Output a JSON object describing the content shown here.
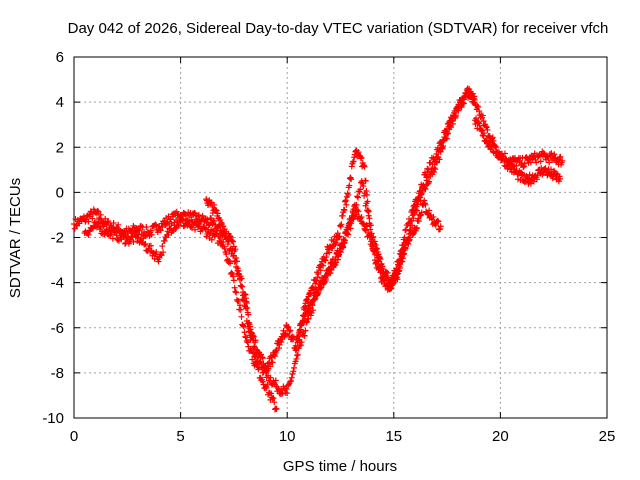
{
  "chart_data": {
    "type": "scatter",
    "title": "Day 042 of 2026, Sidereal Day-to-day VTEC variation (SDTVAR) for receiver vfch",
    "xlabel": "GPS time / hours",
    "ylabel": "SDTVAR / TECUs",
    "xlim": [
      0,
      25
    ],
    "ylim": [
      -10,
      6
    ],
    "xticks": [
      0,
      5,
      10,
      15,
      20,
      25
    ],
    "yticks": [
      -10,
      -8,
      -6,
      -4,
      -2,
      0,
      2,
      4,
      6
    ],
    "grid": true,
    "marker": "+",
    "series": [
      {
        "name": "main",
        "color": "#ff0000",
        "x": [
          0.0,
          0.5,
          1.0,
          1.5,
          2.0,
          2.5,
          3.0,
          3.5,
          4.0,
          4.5,
          5.0,
          5.5,
          6.0,
          6.5,
          7.0,
          7.5,
          8.0,
          8.5,
          9.0,
          9.5,
          10.0,
          10.5,
          11.0,
          11.5,
          12.0,
          12.5,
          13.0,
          13.5,
          14.0,
          14.5,
          15.0,
          15.5,
          16.0,
          16.5,
          17.0,
          17.5,
          18.0,
          18.5,
          19.0,
          19.5,
          20.0,
          20.5,
          21.0,
          21.5,
          22.0,
          22.5,
          22.9
        ],
        "y": [
          -1.4,
          -1.2,
          -0.9,
          -1.4,
          -1.6,
          -1.8,
          -1.6,
          -1.8,
          -1.5,
          -1.2,
          -1.0,
          -1.1,
          -1.2,
          -1.4,
          -1.8,
          -2.8,
          -5.0,
          -7.3,
          -8.0,
          -8.6,
          -8.9,
          -7.2,
          -5.6,
          -4.3,
          -3.4,
          -2.5,
          -1.2,
          0.5,
          -2.0,
          -3.6,
          -4.0,
          -2.0,
          -0.4,
          0.8,
          1.7,
          2.8,
          3.7,
          4.5,
          3.6,
          2.5,
          1.7,
          1.4,
          1.3,
          1.5,
          1.6,
          1.5,
          1.4
        ]
      },
      {
        "name": "b",
        "color": "#ff0000",
        "x": [
          0.5,
          1.0,
          1.5,
          2.0,
          2.5,
          3.0,
          3.5,
          4.0,
          4.5,
          5.0,
          5.5,
          6.0,
          6.5,
          7.0,
          7.5,
          8.0,
          8.5,
          9.0,
          9.5
        ],
        "y": [
          -1.8,
          -1.5,
          -1.7,
          -1.9,
          -2.1,
          -2.0,
          -2.5,
          -2.9,
          -1.6,
          -1.3,
          -1.5,
          -1.6,
          -1.9,
          -2.2,
          -3.9,
          -6.2,
          -7.6,
          -8.6,
          -9.6
        ]
      },
      {
        "name": "c",
        "color": "#ff0000",
        "x": [
          6.2,
          6.6,
          7.0,
          7.5,
          8.0,
          8.3,
          8.6,
          9.0,
          9.4,
          9.7,
          10.0,
          10.4,
          10.8,
          11.2,
          11.6,
          12.0,
          12.4,
          12.8,
          13.2,
          13.6,
          14.0,
          14.4,
          14.8,
          15.2,
          15.6,
          16.0,
          16.4,
          16.8,
          17.2,
          17.6,
          18.0,
          18.4,
          18.8
        ],
        "y": [
          -0.3,
          -0.8,
          -1.5,
          -2.4,
          -4.5,
          -6.2,
          -7.0,
          -7.8,
          -7.2,
          -6.5,
          -6.0,
          -6.8,
          -5.2,
          -4.2,
          -3.2,
          -2.4,
          -2.0,
          -0.2,
          1.8,
          1.2,
          -2.5,
          -3.8,
          -4.2,
          -3.6,
          -2.2,
          -0.8,
          0.2,
          0.8,
          1.8,
          2.8,
          3.8,
          4.4,
          4.1
        ]
      },
      {
        "name": "d",
        "color": "#ff0000",
        "x": [
          10.4,
          10.8,
          11.2,
          11.6,
          12.0,
          12.4,
          12.8,
          13.2,
          13.6,
          14.0,
          14.4,
          14.8,
          15.2,
          15.6,
          16.0,
          16.4,
          16.8,
          17.2
        ],
        "y": [
          -7.0,
          -5.5,
          -4.8,
          -4.0,
          -3.4,
          -2.8,
          -1.8,
          -0.8,
          -1.4,
          -2.3,
          -3.2,
          -4.3,
          -3.2,
          -2.2,
          -1.6,
          -0.5,
          -1.2,
          -1.5
        ]
      },
      {
        "name": "e",
        "color": "#ff0000",
        "x": [
          18.8,
          19.2,
          19.6,
          20.0,
          20.4,
          20.8,
          21.2,
          21.6,
          22.0,
          22.4,
          22.8
        ],
        "y": [
          3.2,
          2.5,
          2.0,
          1.6,
          1.2,
          0.8,
          0.5,
          0.7,
          1.0,
          0.8,
          0.6
        ]
      }
    ]
  }
}
